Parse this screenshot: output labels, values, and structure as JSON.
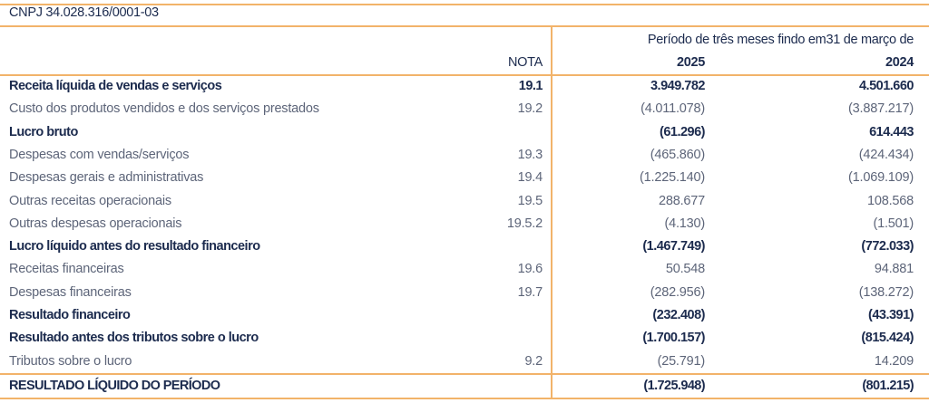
{
  "cnpj": "CNPJ 34.028.316/0001-03",
  "header": {
    "period": "Período de três meses findo em31 de março de",
    "nota": "NOTA",
    "year1": "2025",
    "year2": "2024"
  },
  "rows": [
    {
      "label": "Receita líquida de vendas e serviços",
      "nota": "19.1",
      "v2025": "3.949.782",
      "v2024": "4.501.660",
      "style": "bold"
    },
    {
      "label": "Custo dos produtos vendidos e dos serviços prestados",
      "nota": "19.2",
      "v2025": "(4.011.078)",
      "v2024": "(3.887.217)",
      "style": "reg"
    },
    {
      "label": "Lucro bruto",
      "nota": "",
      "v2025": "(61.296)",
      "v2024": "614.443",
      "style": "bold"
    },
    {
      "label": "Despesas com vendas/serviços",
      "nota": "19.3",
      "v2025": "(465.860)",
      "v2024": "(424.434)",
      "style": "reg"
    },
    {
      "label": "Despesas gerais e administrativas",
      "nota": "19.4",
      "v2025": "(1.225.140)",
      "v2024": "(1.069.109)",
      "style": "reg"
    },
    {
      "label": "Outras receitas operacionais",
      "nota": "19.5",
      "v2025": "288.677",
      "v2024": "108.568",
      "style": "reg"
    },
    {
      "label": "Outras despesas operacionais",
      "nota": "19.5.2",
      "v2025": "(4.130)",
      "v2024": "(1.501)",
      "style": "reg"
    },
    {
      "label": "Lucro líquido antes do resultado financeiro",
      "nota": "",
      "v2025": "(1.467.749)",
      "v2024": "(772.033)",
      "style": "bold"
    },
    {
      "label": "Receitas financeiras",
      "nota": "19.6",
      "v2025": "50.548",
      "v2024": "94.881",
      "style": "reg"
    },
    {
      "label": "Despesas financeiras",
      "nota": "19.7",
      "v2025": "(282.956)",
      "v2024": "(138.272)",
      "style": "reg"
    },
    {
      "label": "Resultado financeiro",
      "nota": "",
      "v2025": "(232.408)",
      "v2024": "(43.391)",
      "style": "bold"
    },
    {
      "label": "Resultado antes dos tributos sobre o lucro",
      "nota": "",
      "v2025": "(1.700.157)",
      "v2024": "(815.424)",
      "style": "bold"
    },
    {
      "label": "Tributos sobre o lucro",
      "nota": "9.2",
      "v2025": "(25.791)",
      "v2024": "14.209",
      "style": "reg"
    },
    {
      "label": "RESULTADO LÍQUIDO DO PERÍODO",
      "nota": "",
      "v2025": "(1.725.948)",
      "v2024": "(801.215)",
      "style": "final"
    }
  ]
}
